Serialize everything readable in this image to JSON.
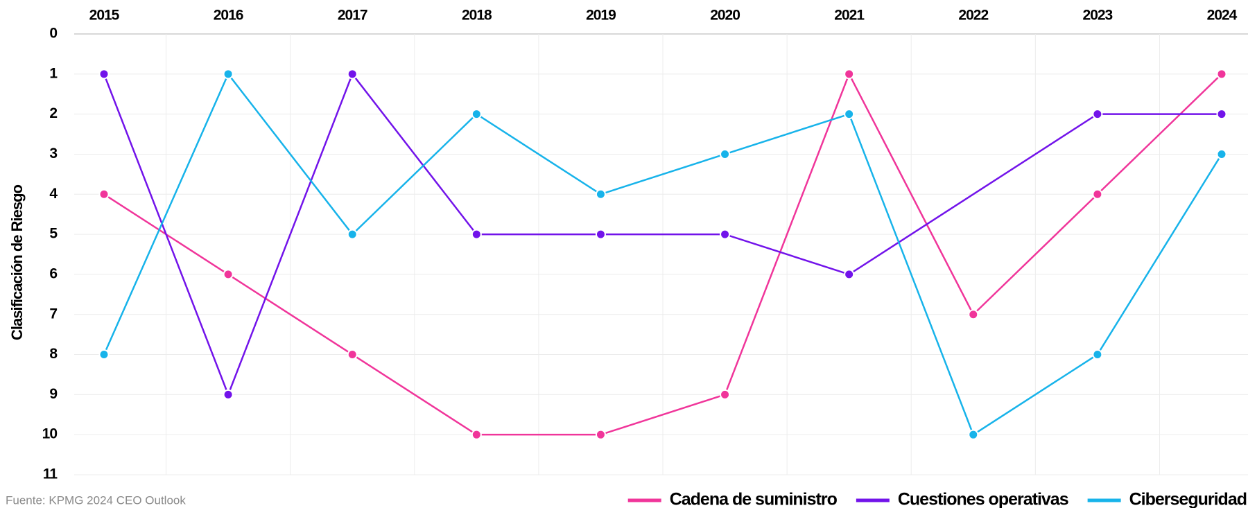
{
  "chart_data": {
    "type": "line",
    "y_label": "Clasificación de Riesgo",
    "source": "Fuente: KPMG 2024 CEO Outlook",
    "categories": [
      "2015",
      "2016",
      "2017",
      "2018",
      "2019",
      "2020",
      "2021",
      "2022",
      "2023",
      "2024"
    ],
    "series": [
      {
        "name": "Cadena de suministro",
        "color": "#f0359a",
        "values": [
          4,
          6,
          8,
          10,
          10,
          9,
          1,
          7,
          4,
          1
        ]
      },
      {
        "name": "Cuestiones operativas",
        "color": "#7213ea",
        "values": [
          1,
          9,
          1,
          5,
          5,
          5,
          6,
          null,
          2,
          2
        ]
      },
      {
        "name": "Ciberseguridad",
        "color": "#17b3ea",
        "values": [
          8,
          1,
          5,
          2,
          4,
          3,
          2,
          10,
          8,
          3
        ]
      }
    ],
    "ylim": [
      0,
      11
    ],
    "yticks": [
      0,
      1,
      2,
      3,
      4,
      5,
      6,
      7,
      8,
      9,
      10,
      11
    ],
    "y_inverted": true,
    "x_axis_position": "top",
    "connect_gaps": true,
    "grid": true,
    "legend": "bottom-right"
  }
}
